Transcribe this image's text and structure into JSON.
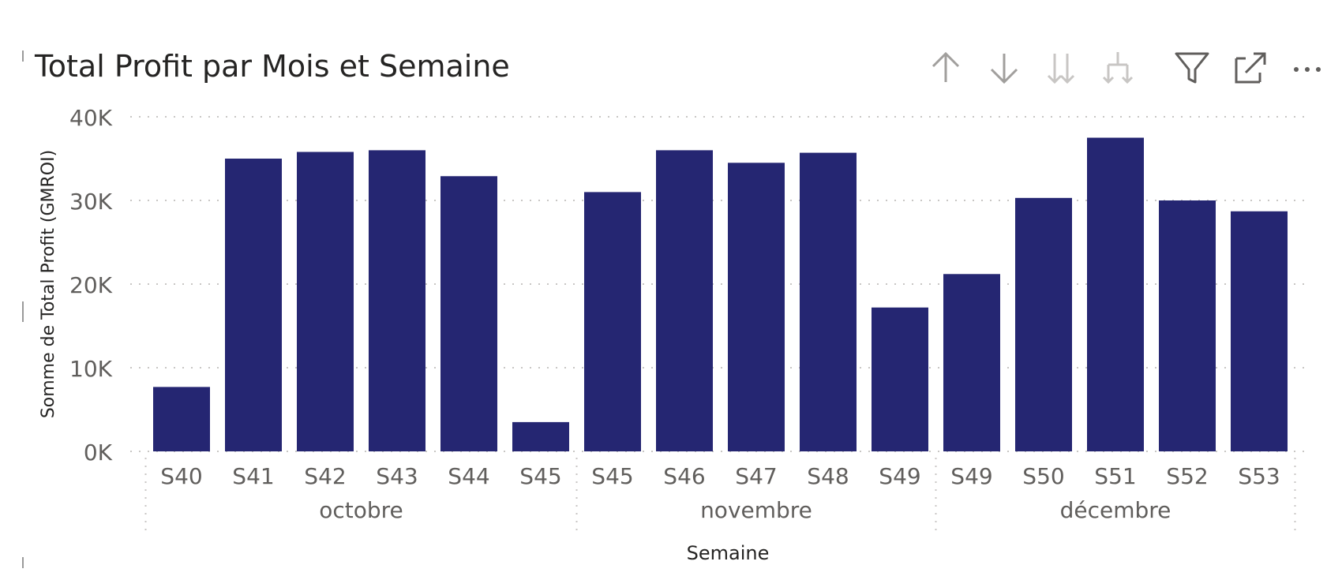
{
  "visual": {
    "title": "Total Profit par Mois et Semaine",
    "toolbar": [
      {
        "name": "sort-ascending-icon",
        "icon": "arrow-up"
      },
      {
        "name": "sort-descending-icon",
        "icon": "arrow-down"
      },
      {
        "name": "expand-all-down-icon",
        "icon": "double-arrow-down"
      },
      {
        "name": "expand-next-level-icon",
        "icon": "fork-down"
      },
      {
        "name": "filter-icon",
        "icon": "funnel"
      },
      {
        "name": "focus-mode-icon",
        "icon": "expand"
      },
      {
        "name": "more-options-icon",
        "icon": "ellipsis"
      }
    ]
  },
  "chart_data": {
    "type": "bar",
    "title": "Total Profit par Mois et Semaine",
    "xlabel": "Semaine",
    "ylabel": "Somme de Total Profit (GMROI)",
    "ylim": [
      0,
      40000
    ],
    "yticks": [
      {
        "value": 0,
        "label": "0K"
      },
      {
        "value": 10000,
        "label": "10K"
      },
      {
        "value": 20000,
        "label": "20K"
      },
      {
        "value": 30000,
        "label": "30K"
      },
      {
        "value": 40000,
        "label": "40K"
      }
    ],
    "grid": true,
    "bar_color": "#252672",
    "groups": [
      {
        "label": "octobre",
        "categories": [
          "S40",
          "S41",
          "S42",
          "S43",
          "S44",
          "S45"
        ],
        "values": [
          7700,
          35000,
          35800,
          36000,
          32900,
          3500
        ]
      },
      {
        "label": "novembre",
        "categories": [
          "S45",
          "S46",
          "S47",
          "S48",
          "S49"
        ],
        "values": [
          31000,
          36000,
          34500,
          35700,
          17200
        ]
      },
      {
        "label": "décembre",
        "categories": [
          "S49",
          "S50",
          "S51",
          "S52",
          "S53"
        ],
        "values": [
          21200,
          30300,
          37500,
          30000,
          28700
        ]
      }
    ]
  }
}
